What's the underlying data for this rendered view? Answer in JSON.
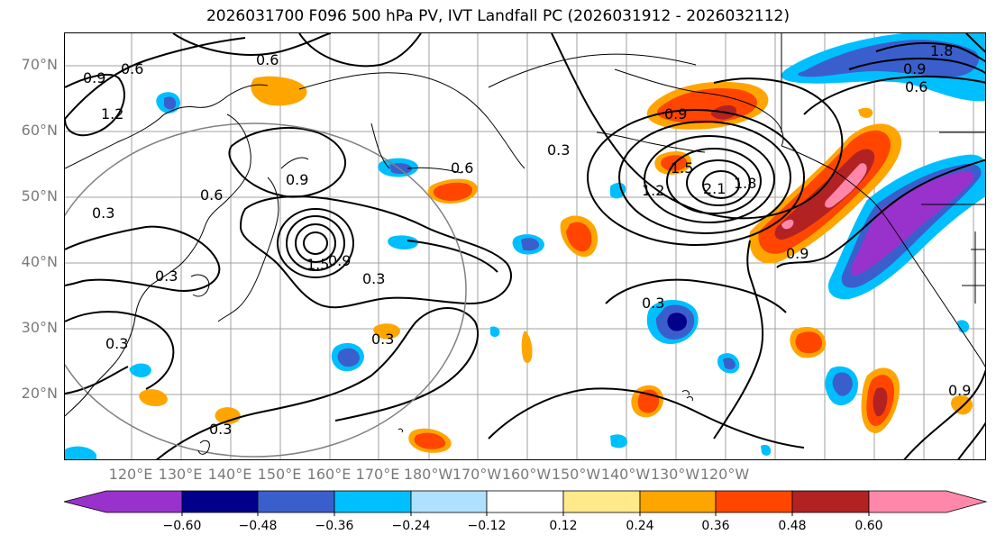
{
  "title": "2026031700 F096 500 hPa PV, IVT Landfall PC (2026031912 - 2026032112)",
  "lat_labels": [
    "70°N",
    "60°N",
    "50°N",
    "40°N",
    "30°N",
    "20°N"
  ],
  "lon_labels": [
    "120°E",
    "130°E",
    "140°E",
    "150°E",
    "160°E",
    "170°E",
    "180°W",
    "170°W",
    "160°W",
    "150°W",
    "140°W",
    "130°W",
    "120°W"
  ],
  "contour_labels": [
    "0.9",
    "0.6",
    "1.2",
    "0.6",
    "0.6",
    "0.9",
    "0.3",
    "0.3",
    "1.5",
    "0.9",
    "0.3",
    "0.3",
    "0.3",
    "0.6",
    "0.3",
    "0.3",
    "0.9",
    "1.2",
    "1.5",
    "2.1",
    "1.8",
    "0.9",
    "0.3",
    "1.8",
    "0.9",
    "0.6",
    "0.9"
  ],
  "colorbar": {
    "tick_labels": [
      "−0.60",
      "−0.48",
      "−0.36",
      "−0.24",
      "−0.12",
      "0.12",
      "0.24",
      "0.36",
      "0.48",
      "0.60"
    ],
    "colors": [
      "#9932cc",
      "#00008b",
      "#3a5fcd",
      "#00bfff",
      "#b0e0ff",
      "#ffffff",
      "#ffe98a",
      "#ffa500",
      "#ff4500",
      "#b22222",
      "#ff88aa"
    ]
  },
  "colors": {
    "contour": "#000000",
    "coast": "#000000",
    "grid": "#a0a0a0",
    "circle": "#808080",
    "axis_label": "#7a7a7a"
  }
}
